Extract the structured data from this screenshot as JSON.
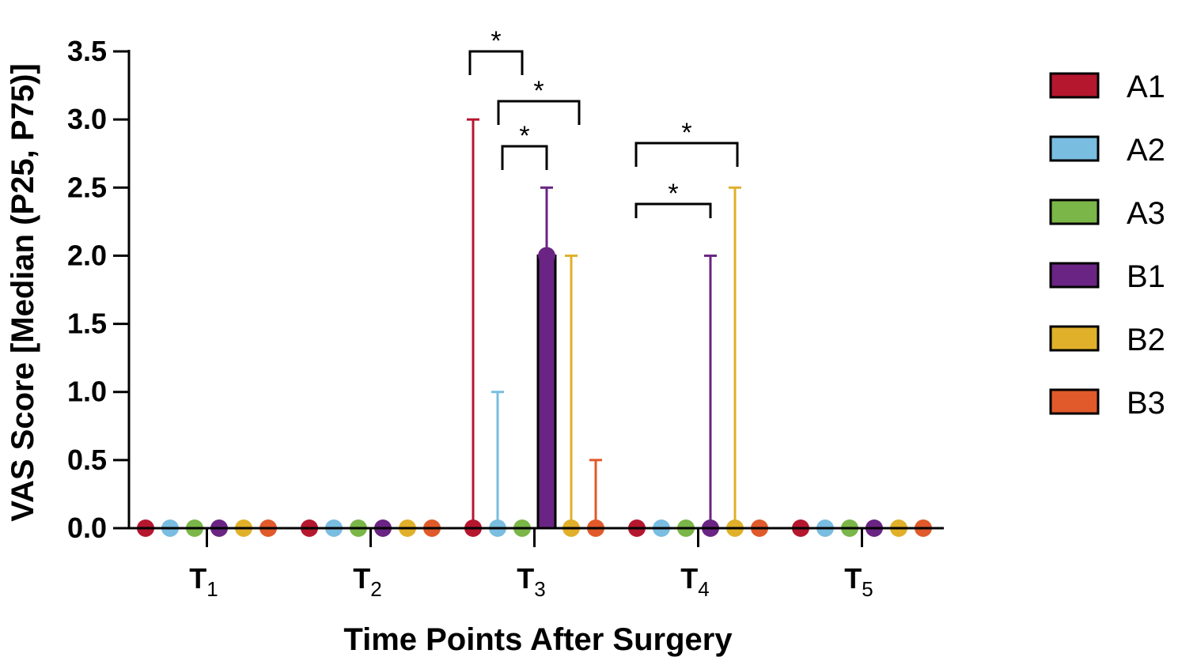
{
  "chart_data": {
    "type": "bar",
    "title": "",
    "xlabel": "Time Points After Surgery",
    "ylabel": "VAS Score [Median (P25, P75)]",
    "ylim": [
      0,
      3.5
    ],
    "y_ticks": [
      "0.0",
      "0.5",
      "1.0",
      "1.5",
      "2.0",
      "2.5",
      "3.0",
      "3.5"
    ],
    "categories": [
      {
        "main": "T",
        "sub": "1"
      },
      {
        "main": "T",
        "sub": "2"
      },
      {
        "main": "T",
        "sub": "3"
      },
      {
        "main": "T",
        "sub": "4"
      },
      {
        "main": "T",
        "sub": "5"
      }
    ],
    "series": [
      {
        "name": "A1",
        "color": "#b5172f",
        "median": [
          0,
          0,
          0,
          0,
          0
        ],
        "p75": [
          0,
          0,
          3.0,
          0,
          0
        ]
      },
      {
        "name": "A2",
        "color": "#79bde0",
        "median": [
          0,
          0,
          0,
          0,
          0
        ],
        "p75": [
          0,
          0,
          1.0,
          0,
          0
        ]
      },
      {
        "name": "A3",
        "color": "#7ab648",
        "median": [
          0,
          0,
          0,
          0,
          0
        ],
        "p75": [
          0,
          0,
          0,
          0,
          0
        ]
      },
      {
        "name": "B1",
        "color": "#6a2483",
        "median": [
          0,
          0,
          2.0,
          0,
          0
        ],
        "p75": [
          0,
          0,
          2.5,
          2.0,
          0
        ]
      },
      {
        "name": "B2",
        "color": "#e0b02a",
        "median": [
          0,
          0,
          0,
          0,
          0
        ],
        "p75": [
          0,
          0,
          2.0,
          2.5,
          0
        ]
      },
      {
        "name": "B3",
        "color": "#e05a2b",
        "median": [
          0,
          0,
          0,
          0,
          0
        ],
        "p75": [
          0,
          0,
          0.5,
          0,
          0
        ]
      }
    ],
    "significance": [
      {
        "category": 2,
        "from_series": 0,
        "to_series": 2,
        "label": "*"
      },
      {
        "category": 2,
        "from_series": 1,
        "to_series": 4,
        "label": "*"
      },
      {
        "category": 2,
        "from_series": 1,
        "to_series": 3,
        "label": "*"
      },
      {
        "category": 3,
        "from_series": 0,
        "to_series": 4,
        "label": "*"
      },
      {
        "category": 3,
        "from_series": 0,
        "to_series": 3,
        "label": "*"
      }
    ],
    "legend_position": "right",
    "grid": false
  }
}
